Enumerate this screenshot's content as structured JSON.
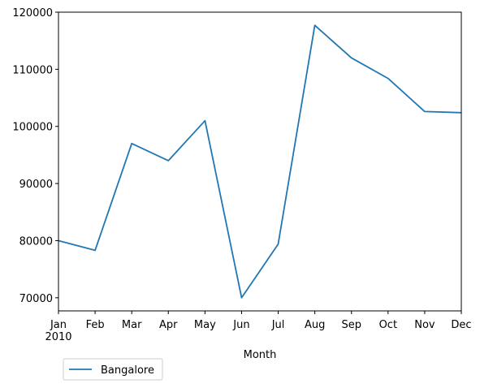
{
  "chart_data": {
    "type": "line",
    "categories": [
      "Jan",
      "Feb",
      "Mar",
      "Apr",
      "May",
      "Jun",
      "Jul",
      "Aug",
      "Sep",
      "Oct",
      "Nov",
      "Dec"
    ],
    "year_label": "2010",
    "series": [
      {
        "name": "Bangalore",
        "color": "#1f77b4",
        "values": [
          80000,
          78300,
          97000,
          94000,
          101000,
          70000,
          79400,
          117700,
          112000,
          108400,
          102600,
          102400
        ]
      }
    ],
    "xlabel": "Month",
    "ylabel": "",
    "yticks": [
      70000,
      80000,
      90000,
      100000,
      110000,
      120000
    ],
    "ylim": [
      67700,
      120000
    ],
    "grid": false,
    "legend_position": "below-left"
  }
}
